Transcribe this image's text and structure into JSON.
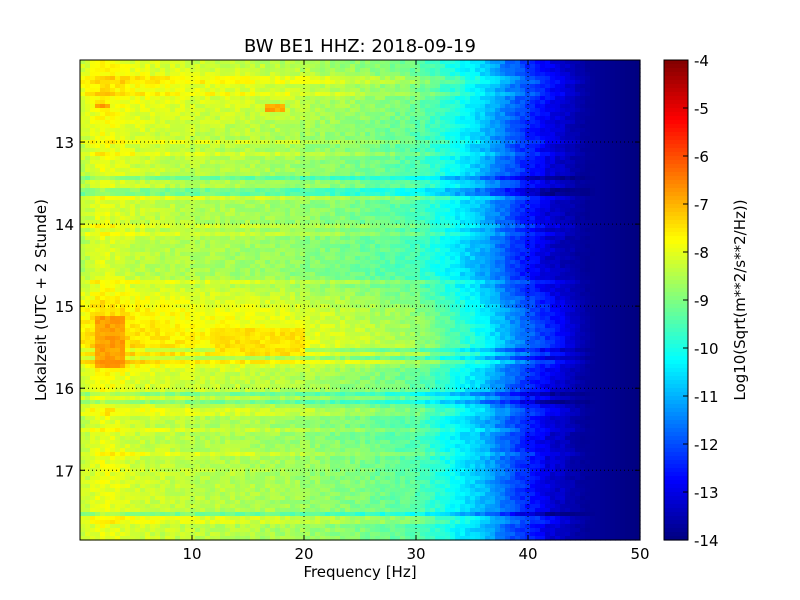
{
  "chart_data": {
    "type": "heatmap",
    "title": "BW BE1 HHZ: 2018-09-19",
    "xlabel": "Frequency [Hz]",
    "ylabel": "Lokalzeit (UTC + 2 Stunde)",
    "xlim": [
      0,
      50
    ],
    "ylim": [
      12.0,
      17.85
    ],
    "y_inverted": true,
    "x_ticks": [
      "10",
      "20",
      "30",
      "40",
      "50"
    ],
    "x_tick_values": [
      10,
      20,
      30,
      40,
      50
    ],
    "y_ticks": [
      "13",
      "14",
      "15",
      "16",
      "17"
    ],
    "y_tick_values": [
      13,
      14,
      15,
      16,
      17
    ],
    "grid": true,
    "colorbar": {
      "label": "Log10(Sqrt(m**2/s**2/Hz))",
      "range": [
        -14,
        -4
      ],
      "ticks": [
        "-4",
        "-5",
        "-6",
        "-7",
        "-8",
        "-9",
        "-10",
        "-11",
        "-12",
        "-13",
        "-14"
      ],
      "tick_values": [
        -4,
        -5,
        -6,
        -7,
        -8,
        -9,
        -10,
        -11,
        -12,
        -13,
        -14
      ],
      "colormap": "jet"
    },
    "frequency_profile": [
      {
        "f": 0,
        "v": -8.3
      },
      {
        "f": 2,
        "v": -7.8
      },
      {
        "f": 5,
        "v": -8.1
      },
      {
        "f": 10,
        "v": -8.3
      },
      {
        "f": 15,
        "v": -8.4
      },
      {
        "f": 20,
        "v": -8.6
      },
      {
        "f": 25,
        "v": -8.9
      },
      {
        "f": 30,
        "v": -9.3
      },
      {
        "f": 33,
        "v": -10.0
      },
      {
        "f": 36,
        "v": -10.8
      },
      {
        "f": 39,
        "v": -12.0
      },
      {
        "f": 42,
        "v": -13.0
      },
      {
        "f": 45,
        "v": -13.7
      },
      {
        "f": 50,
        "v": -14.0
      }
    ],
    "time_profile": [
      {
        "t": 12.0,
        "d": 0.0
      },
      {
        "t": 12.3,
        "d": 0.3
      },
      {
        "t": 13.0,
        "d": -0.1
      },
      {
        "t": 14.0,
        "d": -0.2
      },
      {
        "t": 14.6,
        "d": -0.3
      },
      {
        "t": 15.0,
        "d": 0.4
      },
      {
        "t": 15.3,
        "d": 0.6
      },
      {
        "t": 15.6,
        "d": 0.7
      },
      {
        "t": 15.8,
        "d": 0.1
      },
      {
        "t": 16.5,
        "d": -0.2
      },
      {
        "t": 17.0,
        "d": -0.1
      },
      {
        "t": 17.85,
        "d": -0.1
      }
    ],
    "hot_spots": [
      {
        "f_min": 1.5,
        "f_max": 4.0,
        "t_min": 15.1,
        "t_max": 15.75,
        "v": -6.8
      },
      {
        "f_min": 16.5,
        "f_max": 18.5,
        "t_min": 12.55,
        "t_max": 12.62,
        "v": -6.9
      },
      {
        "f_min": 1.5,
        "f_max": 2.5,
        "t_min": 12.52,
        "t_max": 12.6,
        "v": -6.8
      },
      {
        "f_min": 12.0,
        "f_max": 20.0,
        "t_min": 15.28,
        "t_max": 15.62,
        "v": -7.5
      }
    ]
  }
}
